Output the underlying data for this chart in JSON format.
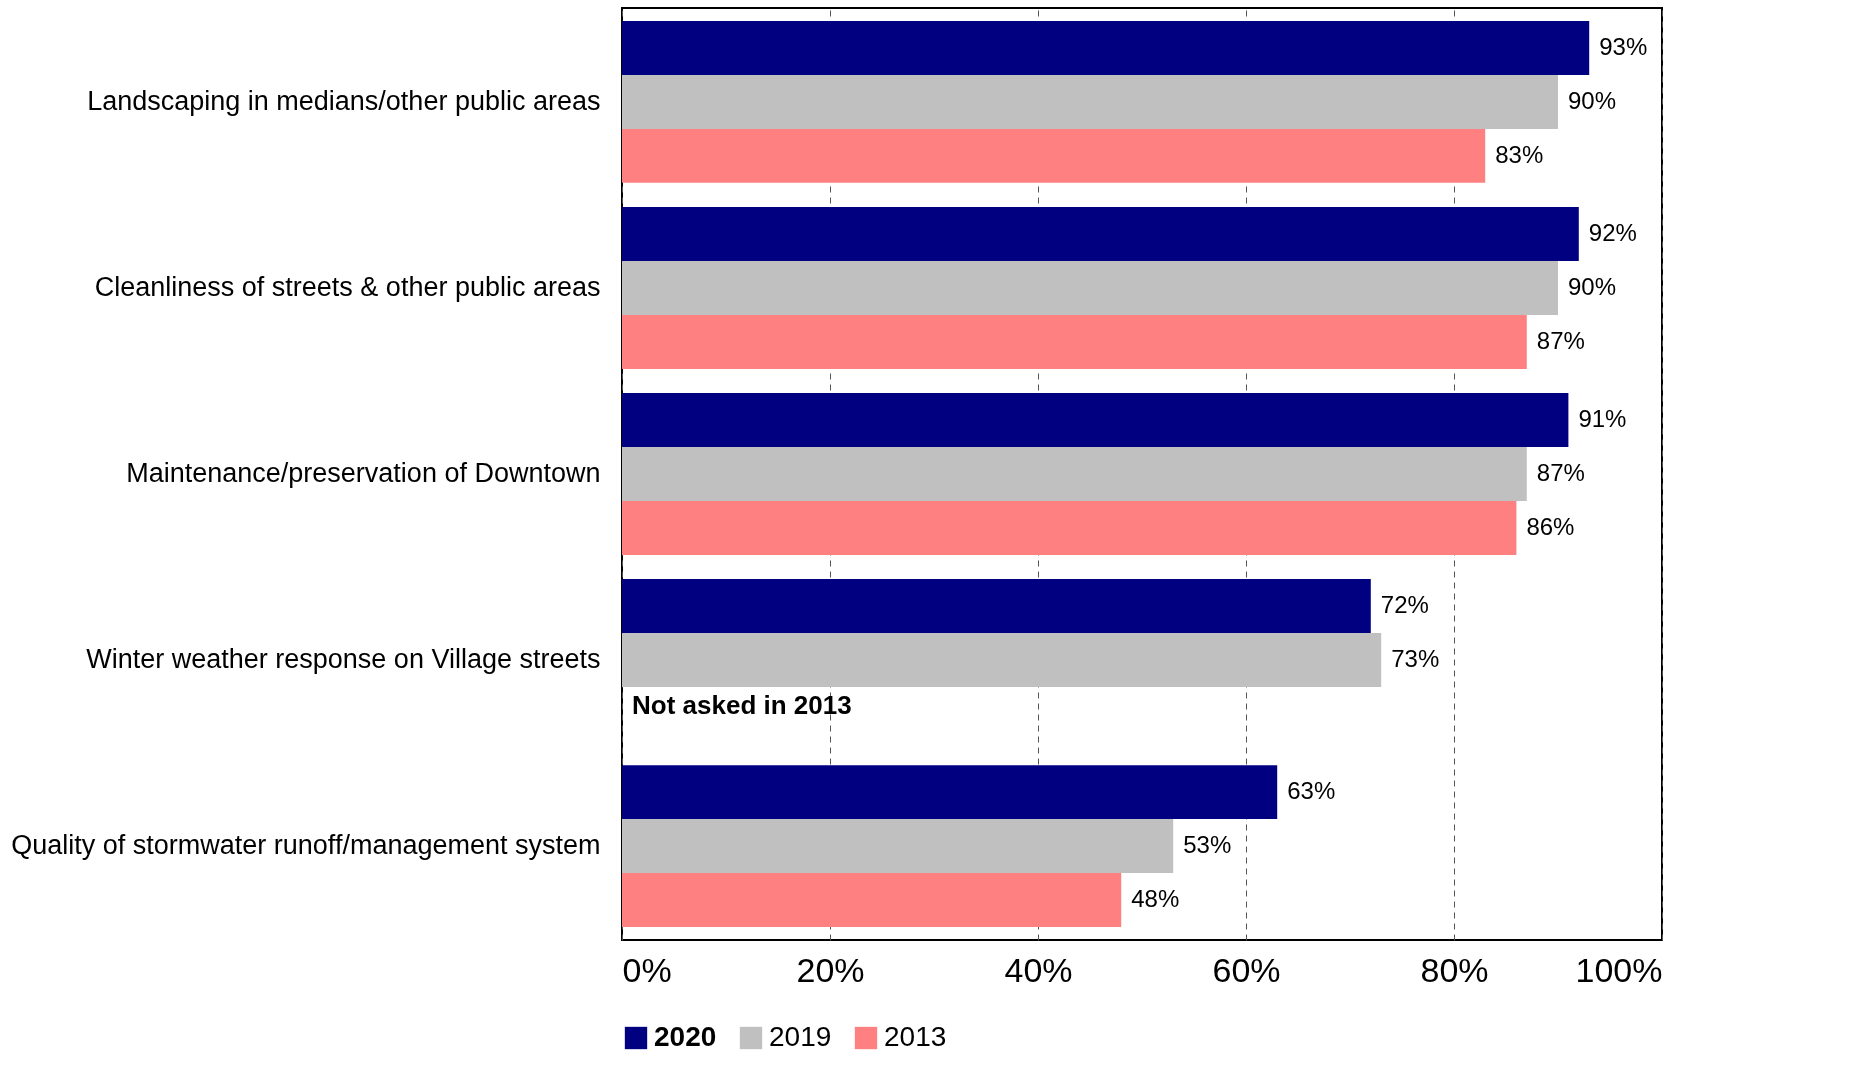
{
  "chart_data": {
    "type": "bar",
    "orientation": "horizontal",
    "categories": [
      "Landscaping in medians/other public areas",
      "Cleanliness of streets & other public areas",
      "Maintenance/preservation of Downtown",
      "Winter weather response on Village streets",
      "Quality of stormwater runoff/management system"
    ],
    "series": [
      {
        "name": "2020",
        "color": "#000080",
        "values": [
          93,
          92,
          91,
          72,
          63
        ],
        "value_labels": [
          "93%",
          "92%",
          "91%",
          "72%",
          "63%"
        ]
      },
      {
        "name": "2019",
        "color": "#c0c0c0",
        "values": [
          90,
          90,
          87,
          73,
          53
        ],
        "value_labels": [
          "90%",
          "90%",
          "87%",
          "73%",
          "53%"
        ]
      },
      {
        "name": "2013",
        "color": "#ff8080",
        "values": [
          83,
          87,
          86,
          null,
          48
        ],
        "value_labels": [
          "83%",
          "87%",
          "86%",
          null,
          "48%"
        ]
      }
    ],
    "xlim": [
      0,
      100
    ],
    "xticks": [
      {
        "value": 0,
        "label": "0%"
      },
      {
        "value": 20,
        "label": "20%"
      },
      {
        "value": 40,
        "label": "40%"
      },
      {
        "value": 60,
        "label": "60%"
      },
      {
        "value": 80,
        "label": "80%"
      },
      {
        "value": 100,
        "label": "100%"
      }
    ],
    "grid": "x",
    "legend": "bottom",
    "annotations": [
      {
        "text": "Not asked in 2013",
        "x": 0,
        "y": "Winter weather response on Village streets"
      }
    ]
  }
}
